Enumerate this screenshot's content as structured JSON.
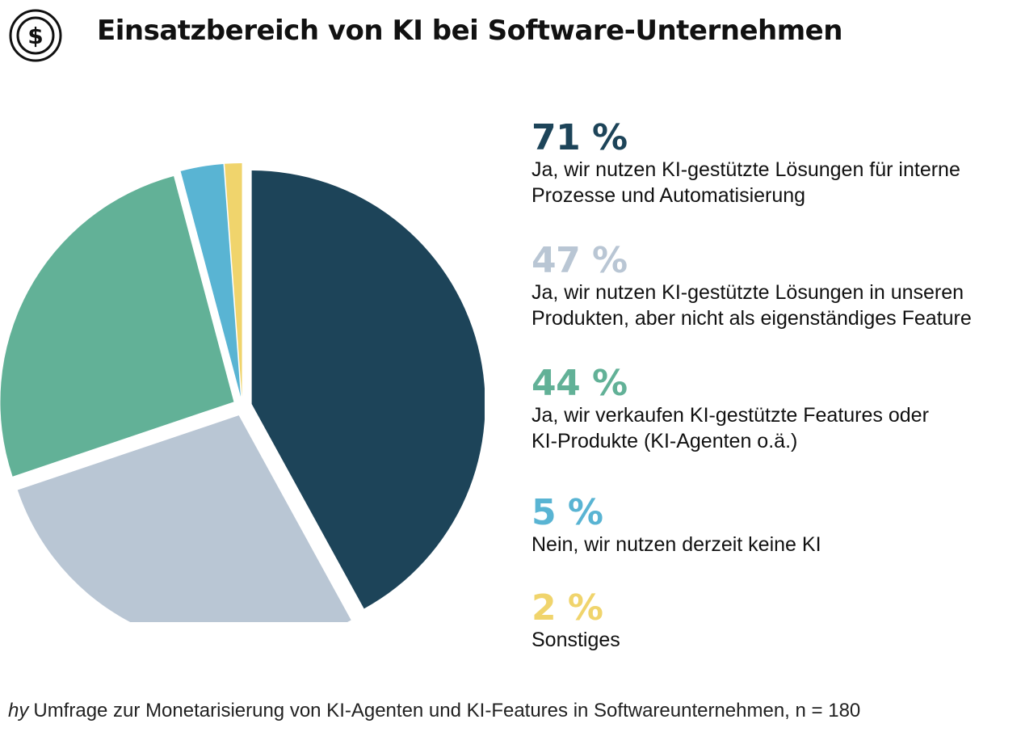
{
  "header": {
    "title": "Einsatzbereich von KI bei Software-Unternehmen",
    "logo_icon": "dollar-coin-icon"
  },
  "chart_data": {
    "type": "pie",
    "title": "Einsatzbereich von KI bei Software-Unternehmen",
    "slices": [
      {
        "value": 71,
        "label": "71 %",
        "description": "Ja, wir nutzen KI-gestützte Lösungen für interne\nProzesse und Automatisierung",
        "color": "#1d4459"
      },
      {
        "value": 47,
        "label": "47 %",
        "description": "Ja, wir nutzen KI-gestützte Lösungen in unseren\n Produkten, aber nicht als eigenständiges Feature",
        "color": "#b9c6d4"
      },
      {
        "value": 44,
        "label": "44 %",
        "description": "Ja, wir verkaufen KI-gestützte Features oder\nKI-Produkte (KI-Agenten o.ä.)",
        "color": "#62b197"
      },
      {
        "value": 5,
        "label": "5 %",
        "description": "Nein, wir nutzen derzeit keine KI",
        "color": "#59b4d3"
      },
      {
        "value": 2,
        "label": "2 %",
        "description": "Sonstiges",
        "color": "#f0d46c"
      }
    ],
    "legend_placement": "right"
  },
  "source": {
    "brand": "hy",
    "text": "Umfrage zur Monetarisierung von KI-Agenten und KI-Features in Softwareunternehmen, n = 180"
  }
}
